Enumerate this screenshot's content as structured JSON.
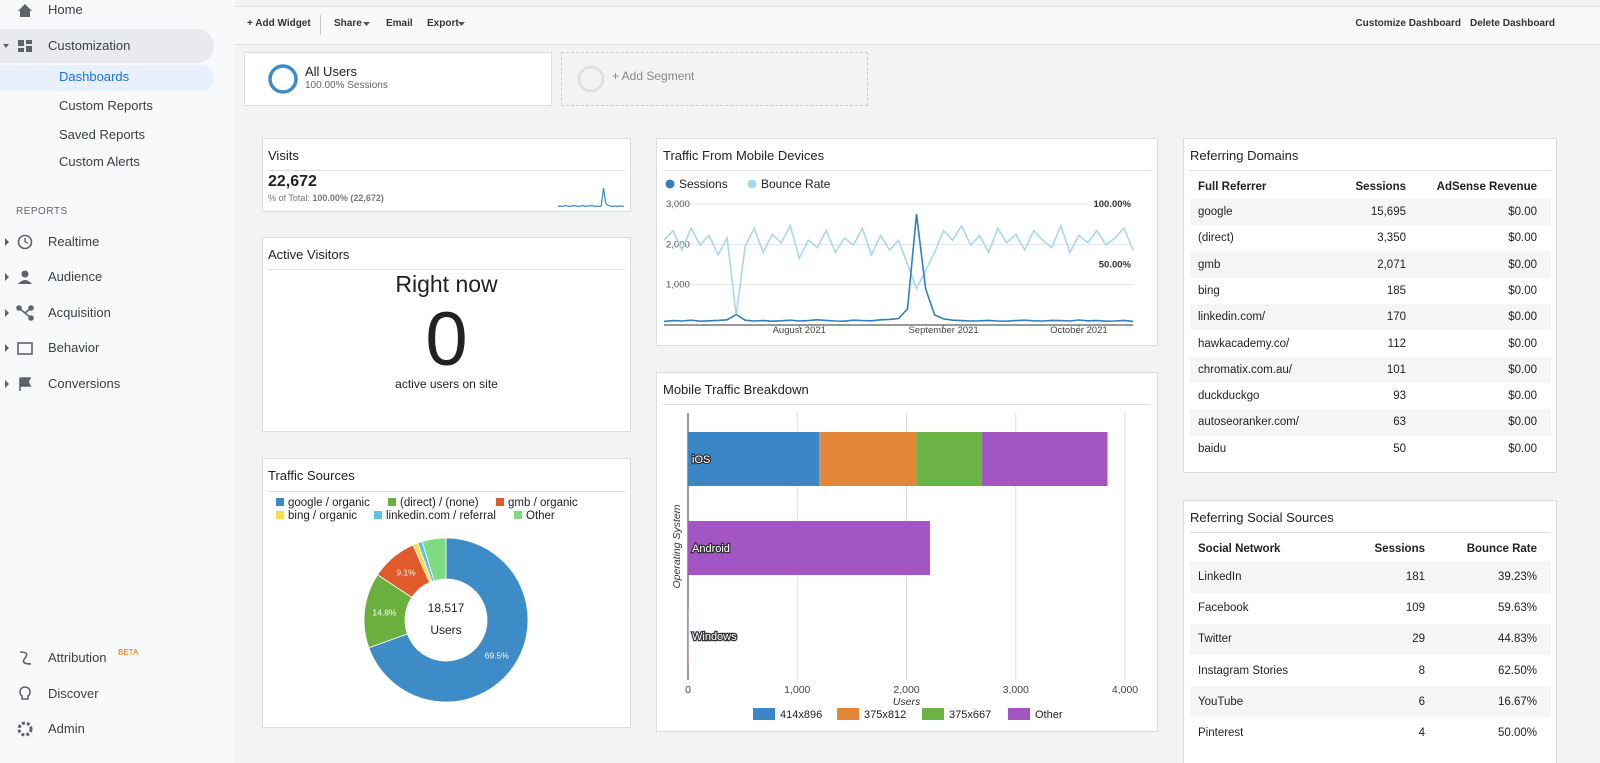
{
  "nav": {
    "home": "Home",
    "customization": "Customization",
    "sub": [
      "Dashboards",
      "Custom Reports",
      "Saved Reports",
      "Custom Alerts"
    ],
    "reports_heading": "REPORTS",
    "reports": [
      "Realtime",
      "Audience",
      "Acquisition",
      "Behavior",
      "Conversions"
    ],
    "bottom": [
      "Attribution",
      "Discover",
      "Admin"
    ],
    "beta": "BETA"
  },
  "toolbar": {
    "left": [
      "+ Add Widget",
      "Share",
      "Email",
      "Export"
    ],
    "right": [
      "Customize Dashboard",
      "Delete Dashboard"
    ]
  },
  "segments": {
    "all_users": "All Users",
    "all_users_sub": "100.00% Sessions",
    "add": "+ Add Segment"
  },
  "visits": {
    "title": "Visits",
    "value": "22,672",
    "total_label": "% of Total:",
    "total_value": "100.00% (22,672)"
  },
  "active_visitors": {
    "title": "Active Visitors",
    "heading": "Right now",
    "count": "0",
    "caption": "active users on site"
  },
  "referring_domains": {
    "title": "Referring Domains",
    "columns": [
      "Full Referrer",
      "Sessions",
      "AdSense Revenue"
    ],
    "rows": [
      [
        "google",
        "15,695",
        "$0.00"
      ],
      [
        "(direct)",
        "3,350",
        "$0.00"
      ],
      [
        "gmb",
        "2,071",
        "$0.00"
      ],
      [
        "bing",
        "185",
        "$0.00"
      ],
      [
        "linkedin.com/",
        "170",
        "$0.00"
      ],
      [
        "hawkacademy.co/",
        "112",
        "$0.00"
      ],
      [
        "chromatix.com.au/",
        "101",
        "$0.00"
      ],
      [
        "duckduckgo",
        "93",
        "$0.00"
      ],
      [
        "autoseoranker.com/",
        "63",
        "$0.00"
      ],
      [
        "baidu",
        "50",
        "$0.00"
      ]
    ]
  },
  "referring_social": {
    "title": "Referring Social Sources",
    "columns": [
      "Social Network",
      "Sessions",
      "Bounce Rate"
    ],
    "rows": [
      [
        "LinkedIn",
        "181",
        "39.23%"
      ],
      [
        "Facebook",
        "109",
        "59.63%"
      ],
      [
        "Twitter",
        "29",
        "44.83%"
      ],
      [
        "Instagram Stories",
        "8",
        "62.50%"
      ],
      [
        "YouTube",
        "6",
        "16.67%"
      ],
      [
        "Pinterest",
        "4",
        "50.00%"
      ]
    ]
  },
  "chart_data": [
    {
      "type": "line",
      "color": "#3b87c8",
      "values": [
        3,
        4,
        3,
        5,
        4,
        3,
        4,
        5,
        4,
        3,
        4,
        5,
        3,
        4,
        4,
        5,
        3,
        4,
        3,
        4,
        40,
        9,
        5,
        4,
        3,
        4,
        3,
        4,
        4,
        3
      ]
    },
    {
      "type": "line",
      "title": "Traffic From Mobile Devices",
      "categories": [
        null,
        null,
        null,
        null,
        null,
        null,
        null,
        null,
        null,
        null,
        null,
        null,
        null,
        null,
        null,
        "August 2021",
        null,
        null,
        null,
        null,
        null,
        null,
        null,
        null,
        null,
        null,
        null,
        null,
        null,
        null,
        null,
        "September 2021",
        null,
        null,
        null,
        null,
        null,
        null,
        null,
        null,
        null,
        null,
        null,
        null,
        null,
        null,
        "October 2021",
        null,
        null,
        null,
        null,
        null,
        null
      ],
      "series": [
        {
          "name": "Sessions",
          "color": "#2f7fc1",
          "values": [
            90,
            110,
            100,
            120,
            95,
            105,
            115,
            130,
            260,
            120,
            100,
            110,
            95,
            105,
            120,
            100,
            110,
            130,
            115,
            100,
            95,
            120,
            110,
            105,
            130,
            140,
            160,
            400,
            2750,
            900,
            250,
            150,
            120,
            110,
            100,
            105,
            115,
            100,
            95,
            110,
            120,
            105,
            100,
            115,
            110,
            100,
            125,
            105,
            110,
            95,
            100,
            115,
            90
          ]
        },
        {
          "name": "Bounce Rate",
          "color": "#a8d8ee",
          "axis": "y2",
          "values": [
            70,
            78,
            62,
            80,
            66,
            74,
            58,
            72,
            8,
            65,
            80,
            60,
            75,
            68,
            82,
            55,
            70,
            64,
            78,
            60,
            72,
            66,
            80,
            58,
            74,
            62,
            70,
            50,
            30,
            45,
            60,
            78,
            70,
            82,
            66,
            74,
            60,
            80,
            68,
            75,
            62,
            78,
            70,
            64,
            82,
            60,
            74,
            68,
            78,
            66,
            72,
            80,
            62
          ]
        }
      ],
      "ylim": [
        0,
        3000
      ],
      "yticks": [
        {
          "value": 1000,
          "label": "1,000"
        },
        {
          "value": 2000,
          "label": "2,000"
        },
        {
          "value": 3000,
          "label": "3,000"
        }
      ],
      "y2lim": [
        0,
        100
      ],
      "y2ticks": [
        {
          "value": 50,
          "label": "50.00%"
        },
        {
          "value": 100,
          "label": "100.00%"
        }
      ],
      "grid": true
    },
    {
      "type": "pie",
      "title": "Traffic Sources",
      "donut": true,
      "center_value": "18,517",
      "center_caption": "Users",
      "categories": [
        "google / organic",
        "(direct) / (none)",
        "gmb / organic",
        "bing / organic",
        "linkedin.com / referral",
        "Other"
      ],
      "values": [
        69.5,
        14.8,
        9.1,
        1.0,
        0.9,
        4.7
      ],
      "value_labels": [
        "69.5%",
        "14.8%",
        "9.1%",
        null,
        null,
        null
      ],
      "colors": [
        "#3d8bc7",
        "#6bb03f",
        "#e05a2b",
        "#f2e046",
        "#5bc3e3",
        "#7fdb82"
      ]
    },
    {
      "type": "bar",
      "orientation": "horizontal",
      "stacked": true,
      "title": "Mobile Traffic Breakdown",
      "xlabel": "Users",
      "ylabel": "Operating System",
      "categories": [
        "iOS",
        "Android",
        "Windows"
      ],
      "series": [
        {
          "name": "414x896",
          "color": "#3b86c6",
          "values": [
            1200,
            0,
            0
          ]
        },
        {
          "name": "375x812",
          "color": "#e28638",
          "values": [
            890,
            0,
            0
          ]
        },
        {
          "name": "375x667",
          "color": "#6ab344",
          "values": [
            600,
            0,
            0
          ]
        },
        {
          "name": "Other",
          "color": "#a455c4",
          "values": [
            1150,
            2215,
            3
          ]
        }
      ],
      "xlim": [
        0,
        4000
      ],
      "xticks": [
        0,
        {
          "value": 1000,
          "label": "1,000"
        },
        {
          "value": 2000,
          "label": "2,000"
        },
        {
          "value": 3000,
          "label": "3,000"
        },
        {
          "value": 4000,
          "label": "4,000"
        }
      ],
      "grid": true
    }
  ]
}
